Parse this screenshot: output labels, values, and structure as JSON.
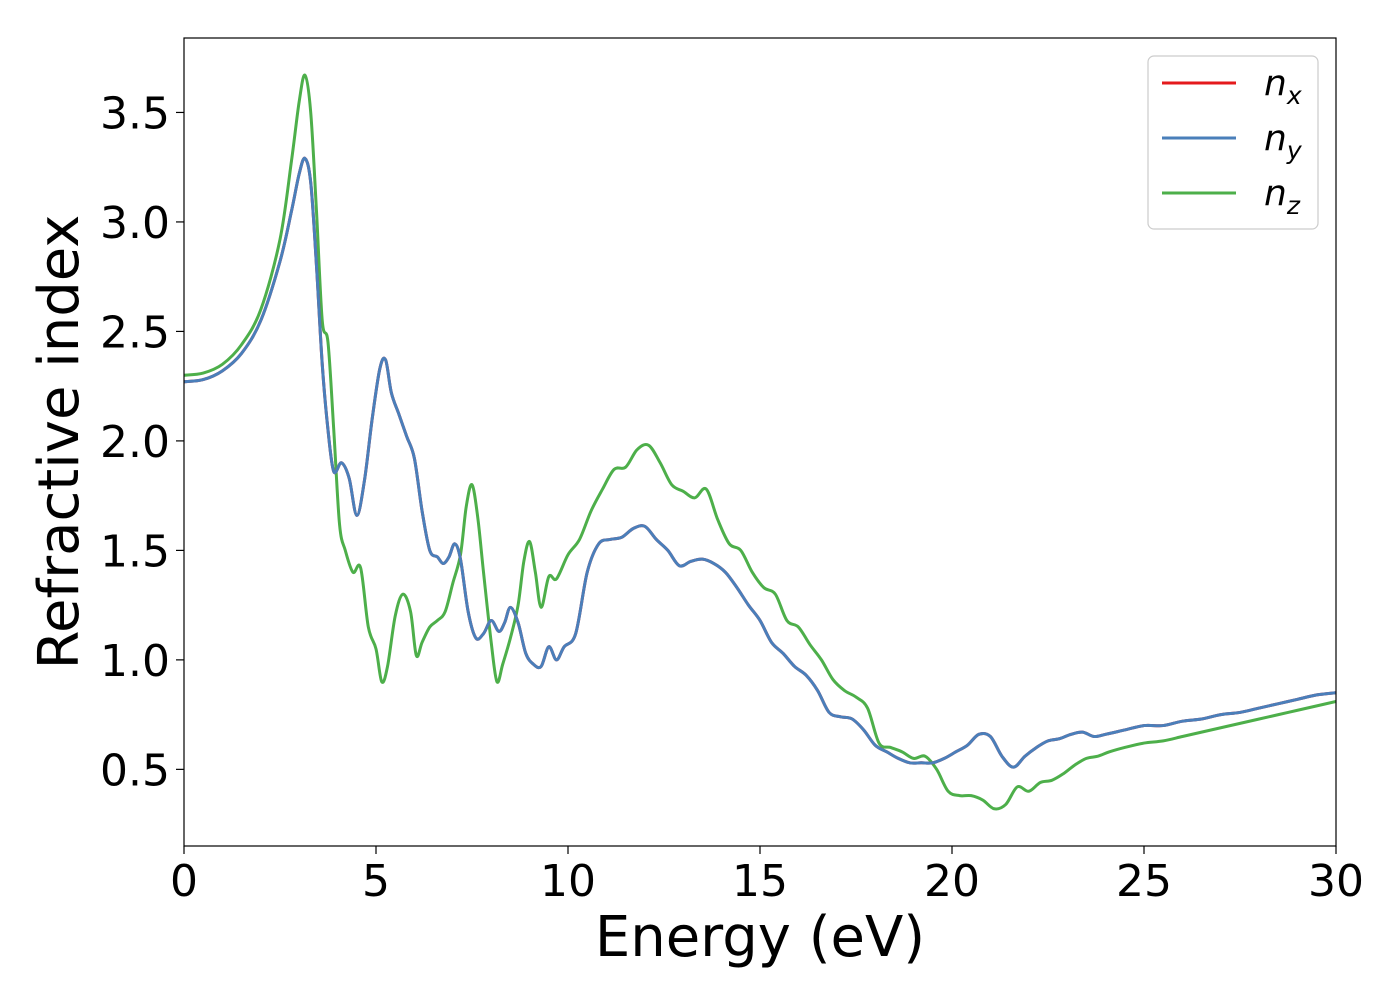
{
  "chart_data": {
    "type": "line",
    "title": "",
    "xlabel": "Energy (eV)",
    "ylabel": "Refractive index",
    "xlim": [
      0,
      30
    ],
    "ylim": [
      0.15,
      3.84
    ],
    "xticks": [
      0,
      5,
      10,
      15,
      20,
      25,
      30
    ],
    "yticks": [
      0.5,
      1.0,
      1.5,
      2.0,
      2.5,
      3.0,
      3.5
    ],
    "xtick_labels": [
      "0",
      "5",
      "10",
      "15",
      "20",
      "25",
      "30"
    ],
    "ytick_labels": [
      "0.5",
      "1.0",
      "1.5",
      "2.0",
      "2.5",
      "3.0",
      "3.5"
    ],
    "grid": false,
    "legend": {
      "position": "top-right",
      "entries": [
        {
          "base": "n",
          "sub": "x",
          "color": "#e41a1c"
        },
        {
          "base": "n",
          "sub": "y",
          "color": "#4a7fba"
        },
        {
          "base": "n",
          "sub": "z",
          "color": "#4daf4a"
        }
      ]
    },
    "series": [
      {
        "name": "n_x",
        "color": "#e41a1c",
        "x": [
          0,
          0.5,
          1.0,
          1.5,
          2.0,
          2.5,
          2.8,
          3.0,
          3.15,
          3.3,
          3.45,
          3.6,
          3.75,
          3.9,
          4.1,
          4.3,
          4.5,
          4.7,
          4.9,
          5.1,
          5.25,
          5.4,
          5.6,
          5.8,
          6.0,
          6.2,
          6.4,
          6.6,
          6.75,
          6.9,
          7.05,
          7.2,
          7.4,
          7.6,
          7.8,
          8.0,
          8.2,
          8.35,
          8.5,
          8.7,
          8.9,
          9.1,
          9.3,
          9.5,
          9.7,
          9.9,
          10.2,
          10.5,
          10.8,
          11.1,
          11.4,
          11.7,
          12.0,
          12.3,
          12.6,
          12.9,
          13.2,
          13.5,
          13.8,
          14.1,
          14.4,
          14.7,
          15.0,
          15.3,
          15.6,
          15.9,
          16.2,
          16.5,
          16.8,
          17.1,
          17.4,
          17.7,
          18.0,
          18.3,
          18.6,
          18.9,
          19.2,
          19.5,
          19.8,
          20.1,
          20.4,
          20.7,
          21.0,
          21.3,
          21.6,
          21.9,
          22.2,
          22.5,
          22.8,
          23.1,
          23.4,
          23.7,
          24.0,
          24.5,
          25.0,
          25.5,
          26.0,
          26.5,
          27.0,
          27.5,
          28.0,
          28.5,
          29.0,
          29.5,
          30.0
        ],
        "values": [
          2.27,
          2.28,
          2.32,
          2.4,
          2.55,
          2.82,
          3.05,
          3.22,
          3.29,
          3.18,
          2.8,
          2.35,
          2.05,
          1.86,
          1.9,
          1.83,
          1.66,
          1.82,
          2.1,
          2.33,
          2.37,
          2.22,
          2.12,
          2.02,
          1.92,
          1.68,
          1.5,
          1.47,
          1.44,
          1.47,
          1.53,
          1.46,
          1.22,
          1.1,
          1.12,
          1.18,
          1.13,
          1.17,
          1.24,
          1.17,
          1.03,
          0.98,
          0.97,
          1.06,
          1.0,
          1.06,
          1.12,
          1.4,
          1.53,
          1.55,
          1.56,
          1.6,
          1.61,
          1.55,
          1.5,
          1.43,
          1.45,
          1.46,
          1.44,
          1.4,
          1.33,
          1.25,
          1.18,
          1.08,
          1.03,
          0.97,
          0.93,
          0.86,
          0.76,
          0.74,
          0.73,
          0.68,
          0.61,
          0.58,
          0.55,
          0.53,
          0.53,
          0.53,
          0.55,
          0.58,
          0.61,
          0.66,
          0.65,
          0.56,
          0.51,
          0.56,
          0.6,
          0.63,
          0.64,
          0.66,
          0.67,
          0.65,
          0.66,
          0.68,
          0.7,
          0.7,
          0.72,
          0.73,
          0.75,
          0.76,
          0.78,
          0.8,
          0.82,
          0.84,
          0.85
        ]
      },
      {
        "name": "n_y",
        "color": "#4a7fba",
        "x": [
          0,
          0.5,
          1.0,
          1.5,
          2.0,
          2.5,
          2.8,
          3.0,
          3.15,
          3.3,
          3.45,
          3.6,
          3.75,
          3.9,
          4.1,
          4.3,
          4.5,
          4.7,
          4.9,
          5.1,
          5.25,
          5.4,
          5.6,
          5.8,
          6.0,
          6.2,
          6.4,
          6.6,
          6.75,
          6.9,
          7.05,
          7.2,
          7.4,
          7.6,
          7.8,
          8.0,
          8.2,
          8.35,
          8.5,
          8.7,
          8.9,
          9.1,
          9.3,
          9.5,
          9.7,
          9.9,
          10.2,
          10.5,
          10.8,
          11.1,
          11.4,
          11.7,
          12.0,
          12.3,
          12.6,
          12.9,
          13.2,
          13.5,
          13.8,
          14.1,
          14.4,
          14.7,
          15.0,
          15.3,
          15.6,
          15.9,
          16.2,
          16.5,
          16.8,
          17.1,
          17.4,
          17.7,
          18.0,
          18.3,
          18.6,
          18.9,
          19.2,
          19.5,
          19.8,
          20.1,
          20.4,
          20.7,
          21.0,
          21.3,
          21.6,
          21.9,
          22.2,
          22.5,
          22.8,
          23.1,
          23.4,
          23.7,
          24.0,
          24.5,
          25.0,
          25.5,
          26.0,
          26.5,
          27.0,
          27.5,
          28.0,
          28.5,
          29.0,
          29.5,
          30.0
        ],
        "values": [
          2.27,
          2.28,
          2.32,
          2.4,
          2.55,
          2.82,
          3.05,
          3.22,
          3.29,
          3.18,
          2.8,
          2.35,
          2.05,
          1.86,
          1.9,
          1.83,
          1.66,
          1.82,
          2.1,
          2.33,
          2.37,
          2.22,
          2.12,
          2.02,
          1.92,
          1.68,
          1.5,
          1.47,
          1.44,
          1.47,
          1.53,
          1.46,
          1.22,
          1.1,
          1.12,
          1.18,
          1.13,
          1.17,
          1.24,
          1.17,
          1.03,
          0.98,
          0.97,
          1.06,
          1.0,
          1.06,
          1.12,
          1.4,
          1.53,
          1.55,
          1.56,
          1.6,
          1.61,
          1.55,
          1.5,
          1.43,
          1.45,
          1.46,
          1.44,
          1.4,
          1.33,
          1.25,
          1.18,
          1.08,
          1.03,
          0.97,
          0.93,
          0.86,
          0.76,
          0.74,
          0.73,
          0.68,
          0.61,
          0.58,
          0.55,
          0.53,
          0.53,
          0.53,
          0.55,
          0.58,
          0.61,
          0.66,
          0.65,
          0.56,
          0.51,
          0.56,
          0.6,
          0.63,
          0.64,
          0.66,
          0.67,
          0.65,
          0.66,
          0.68,
          0.7,
          0.7,
          0.72,
          0.73,
          0.75,
          0.76,
          0.78,
          0.8,
          0.82,
          0.84,
          0.85
        ]
      },
      {
        "name": "n_z",
        "color": "#4daf4a",
        "x": [
          0,
          0.5,
          1.0,
          1.5,
          2.0,
          2.5,
          2.8,
          3.0,
          3.15,
          3.3,
          3.45,
          3.6,
          3.75,
          3.9,
          4.05,
          4.2,
          4.4,
          4.6,
          4.8,
          5.0,
          5.15,
          5.3,
          5.5,
          5.7,
          5.9,
          6.05,
          6.2,
          6.4,
          6.6,
          6.8,
          7.0,
          7.2,
          7.35,
          7.5,
          7.65,
          7.8,
          8.0,
          8.15,
          8.3,
          8.5,
          8.7,
          8.85,
          9.0,
          9.15,
          9.3,
          9.5,
          9.7,
          10.0,
          10.3,
          10.6,
          10.9,
          11.2,
          11.5,
          11.8,
          12.1,
          12.4,
          12.7,
          13.0,
          13.3,
          13.6,
          13.9,
          14.2,
          14.5,
          14.8,
          15.1,
          15.4,
          15.7,
          16.0,
          16.3,
          16.6,
          16.9,
          17.2,
          17.5,
          17.8,
          18.1,
          18.4,
          18.7,
          19.0,
          19.3,
          19.6,
          19.9,
          20.2,
          20.5,
          20.8,
          21.1,
          21.4,
          21.7,
          22.0,
          22.3,
          22.6,
          22.9,
          23.2,
          23.5,
          23.8,
          24.1,
          24.5,
          25.0,
          25.5,
          26.0,
          26.5,
          27.0,
          27.5,
          28.0,
          28.5,
          29.0,
          29.5,
          30.0
        ],
        "values": [
          2.3,
          2.31,
          2.35,
          2.44,
          2.6,
          2.92,
          3.28,
          3.55,
          3.67,
          3.5,
          3.05,
          2.55,
          2.45,
          2.05,
          1.62,
          1.5,
          1.4,
          1.42,
          1.15,
          1.05,
          0.9,
          0.97,
          1.2,
          1.3,
          1.22,
          1.02,
          1.08,
          1.15,
          1.18,
          1.22,
          1.35,
          1.48,
          1.7,
          1.8,
          1.65,
          1.4,
          1.08,
          0.9,
          0.98,
          1.1,
          1.25,
          1.45,
          1.54,
          1.4,
          1.24,
          1.38,
          1.37,
          1.48,
          1.55,
          1.68,
          1.78,
          1.87,
          1.88,
          1.96,
          1.98,
          1.9,
          1.8,
          1.77,
          1.74,
          1.78,
          1.64,
          1.53,
          1.5,
          1.4,
          1.33,
          1.3,
          1.18,
          1.15,
          1.07,
          1.0,
          0.91,
          0.86,
          0.83,
          0.78,
          0.62,
          0.6,
          0.58,
          0.55,
          0.56,
          0.5,
          0.4,
          0.38,
          0.38,
          0.36,
          0.32,
          0.34,
          0.42,
          0.4,
          0.44,
          0.45,
          0.48,
          0.52,
          0.55,
          0.56,
          0.58,
          0.6,
          0.62,
          0.63,
          0.65,
          0.67,
          0.69,
          0.71,
          0.73,
          0.75,
          0.77,
          0.79,
          0.81
        ]
      }
    ]
  }
}
